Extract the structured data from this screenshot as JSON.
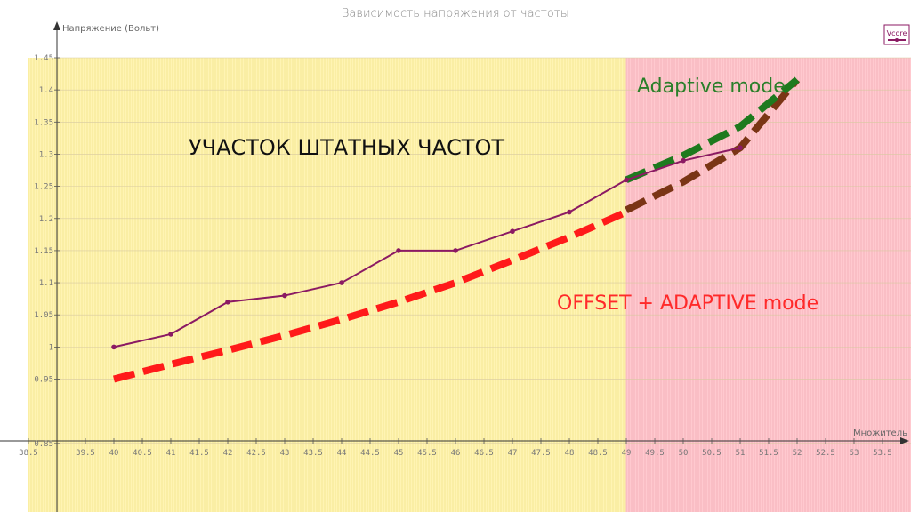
{
  "chart_data": {
    "type": "line",
    "title": "Зависимость напряжения от частоты",
    "ylabel": "Напряжение (Вольт)",
    "xlabel": "Множитель",
    "xlim": [
      38.5,
      54
    ],
    "ylim": [
      0.8,
      1.45
    ],
    "x_ticks": [
      {
        "v": 38.5,
        "label": "38.5"
      },
      {
        "v": 39.5,
        "label": "39.5"
      },
      {
        "v": 40,
        "label": "40"
      },
      {
        "v": 40.5,
        "label": "40.5"
      },
      {
        "v": 41,
        "label": "41"
      },
      {
        "v": 41.5,
        "label": "41.5"
      },
      {
        "v": 42,
        "label": "42"
      },
      {
        "v": 42.5,
        "label": "42.5"
      },
      {
        "v": 43,
        "label": "43"
      },
      {
        "v": 43.5,
        "label": "43.5"
      },
      {
        "v": 44,
        "label": "44"
      },
      {
        "v": 44.5,
        "label": "44.5"
      },
      {
        "v": 45,
        "label": "45"
      },
      {
        "v": 45.5,
        "label": "45.5"
      },
      {
        "v": 46,
        "label": "46"
      },
      {
        "v": 46.5,
        "label": "46.5"
      },
      {
        "v": 47,
        "label": "47"
      },
      {
        "v": 47.5,
        "label": "47.5"
      },
      {
        "v": 48,
        "label": "48"
      },
      {
        "v": 48.5,
        "label": "48.5"
      },
      {
        "v": 49,
        "label": "49"
      },
      {
        "v": 49.5,
        "label": "49.5"
      },
      {
        "v": 50,
        "label": "50"
      },
      {
        "v": 50.5,
        "label": "50.5"
      },
      {
        "v": 51,
        "label": "51"
      },
      {
        "v": 51.5,
        "label": "51.5"
      },
      {
        "v": 52,
        "label": "52"
      },
      {
        "v": 52.5,
        "label": "52.5"
      },
      {
        "v": 53,
        "label": "53"
      },
      {
        "v": 53.5,
        "label": "53.5"
      }
    ],
    "y_ticks": [
      {
        "v": 1.45,
        "label": "1.45"
      },
      {
        "v": 1.4,
        "label": "1.4"
      },
      {
        "v": 1.35,
        "label": "1.35"
      },
      {
        "v": 1.3,
        "label": "1.3"
      },
      {
        "v": 1.25,
        "label": "1.25"
      },
      {
        "v": 1.2,
        "label": "1.2"
      },
      {
        "v": 1.15,
        "label": "1.15"
      },
      {
        "v": 1.1,
        "label": "1.1"
      },
      {
        "v": 1.05,
        "label": "1.05"
      },
      {
        "v": 1.0,
        "label": "1"
      },
      {
        "v": 0.95,
        "label": "0.95"
      },
      {
        "v": 0.85,
        "label": "0.85"
      }
    ],
    "series": [
      {
        "name": "Vcore",
        "color": "#8b1a63",
        "x": [
          40,
          41,
          42,
          43,
          44,
          45,
          46,
          47,
          48,
          49,
          50,
          51
        ],
        "y": [
          1.0,
          1.02,
          1.07,
          1.08,
          1.1,
          1.15,
          1.15,
          1.18,
          1.21,
          1.26,
          1.29,
          1.31
        ]
      }
    ],
    "overlay_curves": [
      {
        "color": "#ff1a1a",
        "x": [
          40,
          41,
          42,
          43,
          44,
          45,
          46,
          47,
          48,
          49
        ],
        "y": [
          0.95,
          0.973,
          0.995,
          1.018,
          1.043,
          1.07,
          1.1,
          1.135,
          1.171,
          1.21
        ]
      },
      {
        "color": "#7a3515",
        "x": [
          49,
          50,
          51,
          52
        ],
        "y": [
          1.213,
          1.257,
          1.31,
          1.416
        ]
      },
      {
        "color": "#1e7a1e",
        "x": [
          49,
          50,
          51,
          52
        ],
        "y": [
          1.26,
          1.298,
          1.343,
          1.416
        ]
      }
    ],
    "zones": [
      {
        "from": 38.5,
        "to": 49,
        "color": "#fff4b3"
      },
      {
        "from": 49,
        "to": 54,
        "color": "#ffc9cf"
      }
    ],
    "annotations": [
      {
        "text": "УЧАСТОК ШТАТНЫХ ЧАСТОТ",
        "color": "#111111"
      },
      {
        "text": "Adaptive mode",
        "color": "#2a7f2a"
      },
      {
        "text": "OFFSET + ADAPTIVE mode",
        "color": "#ff2a2a"
      }
    ],
    "legend": {
      "position": "top-right",
      "label": "Vcore"
    },
    "grid": true
  }
}
